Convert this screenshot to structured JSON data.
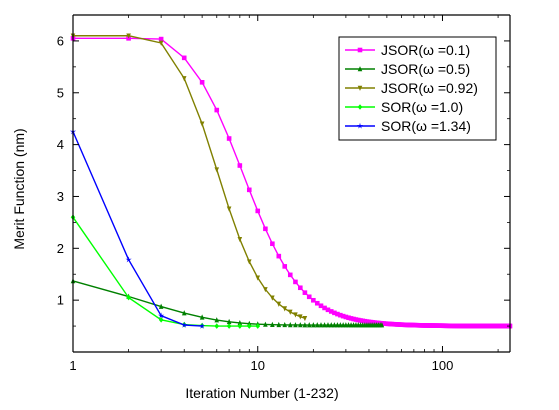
{
  "chart_data": {
    "type": "line",
    "title": "",
    "xlabel": "Iteration Number (1-232)",
    "ylabel": "Merit Function (nm)",
    "xscale": "log",
    "xlim": [
      1,
      232
    ],
    "ylim": [
      0,
      6.5
    ],
    "x_ticks": [
      {
        "value": 1,
        "label": "1"
      },
      {
        "value": 10,
        "label": "10"
      },
      {
        "value": 100,
        "label": "100"
      }
    ],
    "y_ticks": [
      {
        "value": 1,
        "label": "1"
      },
      {
        "value": 2,
        "label": "2"
      },
      {
        "value": 3,
        "label": "3"
      },
      {
        "value": 4,
        "label": "4"
      },
      {
        "value": 5,
        "label": "5"
      },
      {
        "value": 6,
        "label": "6"
      }
    ],
    "grid": false,
    "legend": {
      "placement": "top-right"
    },
    "series": [
      {
        "name": "JSOR(ω =0.1)",
        "color": "#ff00ff",
        "marker": "square",
        "n": 232,
        "start": 6.05,
        "end": 0.5,
        "curve": "slow-sigmoid"
      },
      {
        "name": "JSOR(ω =0.5)",
        "color": "#008000",
        "marker": "triangle-up",
        "n": 47,
        "start": 1.37,
        "end": 0.52,
        "curve": "fast-decay"
      },
      {
        "name": "JSOR(ω =0.92)",
        "color": "#808000",
        "marker": "triangle-down",
        "n": 18,
        "start": 6.1,
        "end": 0.5,
        "curve": "mid-sigmoid"
      },
      {
        "name": "SOR(ω =1.0)",
        "color": "#00ff00",
        "marker": "diamond",
        "n": 10,
        "start": 2.6,
        "end": 0.5,
        "curve": "listed",
        "values": [
          2.6,
          1.05,
          0.62,
          0.53,
          0.51,
          0.5,
          0.5,
          0.5,
          0.5,
          0.5
        ]
      },
      {
        "name": "SOR(ω =1.34)",
        "color": "#0000ff",
        "marker": "star",
        "n": 5,
        "start": 4.25,
        "end": 0.5,
        "curve": "listed",
        "values": [
          4.25,
          1.78,
          0.7,
          0.52,
          0.5
        ]
      }
    ]
  }
}
